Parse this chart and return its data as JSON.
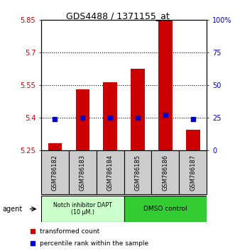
{
  "title": "GDS4488 / 1371155_at",
  "samples": [
    "GSM786182",
    "GSM786183",
    "GSM786184",
    "GSM786185",
    "GSM786186",
    "GSM786187"
  ],
  "bar_values": [
    5.285,
    5.53,
    5.565,
    5.625,
    5.87,
    5.345
  ],
  "dot_values": [
    5.395,
    5.4,
    5.4,
    5.4,
    5.415,
    5.395
  ],
  "ylim_left": [
    5.25,
    5.85
  ],
  "ylim_right": [
    0,
    100
  ],
  "yticks_left": [
    5.25,
    5.4,
    5.55,
    5.7,
    5.85
  ],
  "ytick_labels_left": [
    "5.25",
    "5.4",
    "5.55",
    "5.7",
    "5.85"
  ],
  "yticks_right": [
    0,
    25,
    50,
    75,
    100
  ],
  "ytick_labels_right": [
    "0",
    "25",
    "50",
    "75",
    "100%"
  ],
  "hlines": [
    5.4,
    5.55,
    5.7
  ],
  "bar_color": "#cc0000",
  "dot_color": "#0000cc",
  "bar_width": 0.5,
  "group1_label": "Notch inhibitor DAPT\n(10 μM.)",
  "group2_label": "DMSO control",
  "group1_indices": [
    0,
    1,
    2
  ],
  "group2_indices": [
    3,
    4,
    5
  ],
  "group1_bg": "#ccffcc",
  "group2_bg": "#33cc33",
  "agent_label": "agent",
  "legend_bar_label": "transformed count",
  "legend_dot_label": "percentile rank within the sample",
  "plot_bg": "#ffffff",
  "sample_box_bg": "#cccccc",
  "left_tick_color": "#cc0000",
  "right_tick_color": "#0000cc"
}
